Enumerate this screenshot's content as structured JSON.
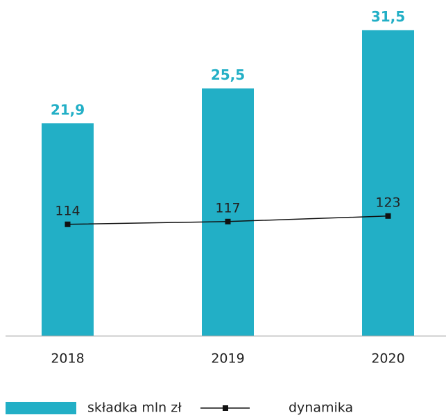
{
  "chart_data": {
    "type": "bar",
    "categories": [
      "2018",
      "2019",
      "2020"
    ],
    "series": [
      {
        "name": "składka mln zł",
        "color": "#22afc6",
        "values": [
          21.9,
          25.5,
          31.5
        ],
        "value_labels": [
          "21,9",
          "25,5",
          "31,5"
        ]
      },
      {
        "name": "dynamika",
        "color": "#111111",
        "type": "line",
        "axis": "y2",
        "values": [
          114,
          117,
          123
        ]
      }
    ],
    "ylim": [
      0,
      34.6
    ],
    "y2lim": [
      -7,
      357
    ]
  }
}
